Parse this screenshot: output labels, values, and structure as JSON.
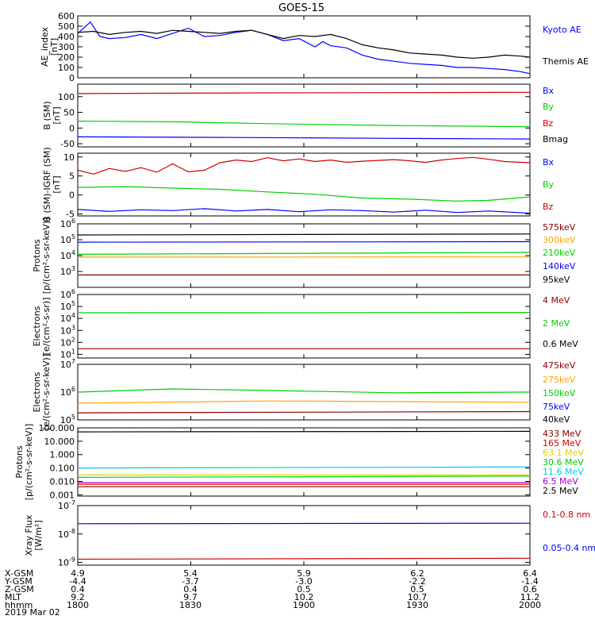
{
  "title": "GOES-15",
  "date_label": "2019 Mar 02",
  "footer_rows": [
    {
      "label": "X-GSM",
      "values": [
        "4.9",
        "5.4",
        "5.9",
        "6.2",
        "6.4"
      ]
    },
    {
      "label": "Y-GSM",
      "values": [
        "-4.4",
        "-3.7",
        "-3.0",
        "-2.2",
        "-1.4"
      ]
    },
    {
      "label": "Z-GSM",
      "values": [
        "0.4",
        "0.4",
        "0.5",
        "0.5",
        "0.6"
      ]
    },
    {
      "label": "MLT",
      "values": [
        "9.2",
        "9.7",
        "10.2",
        "10.7",
        "11.2"
      ]
    },
    {
      "label": "hhmm",
      "values": [
        "1800",
        "1830",
        "1900",
        "1930",
        "2000"
      ]
    }
  ],
  "colors": {
    "black": "#000000",
    "blue": "#0000ff",
    "green": "#00d000",
    "red": "#d00000",
    "darkred": "#8b0000",
    "orange": "#ffa500",
    "yellow": "#e8d000",
    "cyan": "#00c8e6",
    "purple": "#a000c8"
  },
  "chart_data": [
    {
      "type": "line",
      "id": "ae",
      "ylabel": [
        "AE_index",
        "[nT]"
      ],
      "yticks": [
        "600",
        "500",
        "400",
        "300",
        "200",
        "100",
        "0"
      ],
      "x_range": [
        "1800",
        "2000"
      ],
      "ylim": [
        0,
        600
      ],
      "series": [
        {
          "name": "Kyoto AE",
          "color": "#0000ff",
          "points": [
            [
              0,
              430
            ],
            [
              8,
              540
            ],
            [
              14,
              400
            ],
            [
              20,
              380
            ],
            [
              30,
              390
            ],
            [
              40,
              420
            ],
            [
              50,
              380
            ],
            [
              60,
              430
            ],
            [
              70,
              480
            ],
            [
              80,
              400
            ],
            [
              90,
              410
            ],
            [
              100,
              440
            ],
            [
              110,
              460
            ],
            [
              120,
              420
            ],
            [
              130,
              360
            ],
            [
              140,
              380
            ],
            [
              150,
              300
            ],
            [
              155,
              350
            ],
            [
              160,
              310
            ],
            [
              170,
              290
            ],
            [
              180,
              220
            ],
            [
              190,
              180
            ],
            [
              200,
              160
            ],
            [
              210,
              140
            ],
            [
              220,
              130
            ],
            [
              230,
              120
            ],
            [
              240,
              100
            ],
            [
              250,
              100
            ],
            [
              260,
              90
            ],
            [
              270,
              80
            ],
            [
              280,
              60
            ],
            [
              286,
              40
            ]
          ]
        },
        {
          "name": "Themis AE",
          "color": "#000000",
          "points": [
            [
              0,
              440
            ],
            [
              10,
              450
            ],
            [
              20,
              420
            ],
            [
              30,
              440
            ],
            [
              40,
              450
            ],
            [
              50,
              430
            ],
            [
              60,
              460
            ],
            [
              70,
              450
            ],
            [
              80,
              440
            ],
            [
              90,
              430
            ],
            [
              100,
              450
            ],
            [
              110,
              460
            ],
            [
              120,
              420
            ],
            [
              130,
              380
            ],
            [
              140,
              410
            ],
            [
              150,
              400
            ],
            [
              160,
              420
            ],
            [
              170,
              380
            ],
            [
              180,
              320
            ],
            [
              190,
              290
            ],
            [
              200,
              270
            ],
            [
              210,
              240
            ],
            [
              220,
              230
            ],
            [
              230,
              220
            ],
            [
              240,
              200
            ],
            [
              250,
              190
            ],
            [
              260,
              200
            ],
            [
              270,
              220
            ],
            [
              280,
              210
            ],
            [
              286,
              200
            ]
          ]
        }
      ]
    },
    {
      "type": "line",
      "id": "b_sm",
      "ylabel": [
        "B (SM)",
        "[nT]"
      ],
      "yticks": [
        "100",
        "50",
        "0",
        "-50"
      ],
      "ylim": [
        -60,
        140
      ],
      "series": [
        {
          "name": "Bx",
          "color": "#0000ff",
          "points": [
            [
              0,
              -28
            ],
            [
              100,
              -30
            ],
            [
              200,
              -33
            ],
            [
              286,
              -35
            ]
          ]
        },
        {
          "name": "By",
          "color": "#00d000",
          "points": [
            [
              0,
              22
            ],
            [
              60,
              20
            ],
            [
              120,
              14
            ],
            [
              200,
              8
            ],
            [
              286,
              4
            ]
          ]
        },
        {
          "name": "Bz",
          "color": "#d00000",
          "points": [
            [
              0,
              110
            ],
            [
              100,
              112
            ],
            [
              200,
              113
            ],
            [
              286,
              114
            ]
          ]
        },
        {
          "name": "Bmag",
          "color": "#000000",
          "points": []
        }
      ]
    },
    {
      "type": "line",
      "id": "b_sm_igrf",
      "ylabel": [
        "B (SM)-IGRF (SM)",
        "[nT]"
      ],
      "yticks": [
        "10",
        "5",
        "0",
        "-5"
      ],
      "ylim": [
        -5.5,
        11
      ],
      "series": [
        {
          "name": "Bx",
          "color": "#0000ff",
          "points": [
            [
              0,
              -3.8
            ],
            [
              20,
              -4.3
            ],
            [
              40,
              -3.9
            ],
            [
              60,
              -4.1
            ],
            [
              80,
              -3.6
            ],
            [
              100,
              -4.2
            ],
            [
              120,
              -3.8
            ],
            [
              140,
              -4.4
            ],
            [
              160,
              -3.9
            ],
            [
              180,
              -4.1
            ],
            [
              200,
              -4.5
            ],
            [
              220,
              -4.0
            ],
            [
              240,
              -4.6
            ],
            [
              260,
              -4.2
            ],
            [
              286,
              -4.8
            ]
          ]
        },
        {
          "name": "By",
          "color": "#00d000",
          "points": [
            [
              0,
              2.0
            ],
            [
              30,
              2.2
            ],
            [
              60,
              1.8
            ],
            [
              90,
              1.5
            ],
            [
              120,
              0.8
            ],
            [
              150,
              0.2
            ],
            [
              180,
              -0.8
            ],
            [
              210,
              -1.1
            ],
            [
              240,
              -1.6
            ],
            [
              260,
              -1.4
            ],
            [
              286,
              -0.5
            ]
          ]
        },
        {
          "name": "Bz",
          "color": "#d00000",
          "points": [
            [
              0,
              6.5
            ],
            [
              10,
              5.5
            ],
            [
              20,
              7.0
            ],
            [
              30,
              6.2
            ],
            [
              40,
              7.2
            ],
            [
              50,
              6.0
            ],
            [
              60,
              8.2
            ],
            [
              70,
              6.1
            ],
            [
              80,
              6.5
            ],
            [
              90,
              8.5
            ],
            [
              100,
              9.2
            ],
            [
              110,
              8.8
            ],
            [
              120,
              9.8
            ],
            [
              130,
              9.0
            ],
            [
              140,
              9.5
            ],
            [
              150,
              8.8
            ],
            [
              160,
              9.2
            ],
            [
              170,
              8.6
            ],
            [
              180,
              8.9
            ],
            [
              190,
              9.1
            ],
            [
              200,
              9.3
            ],
            [
              210,
              9.0
            ],
            [
              220,
              8.6
            ],
            [
              230,
              9.2
            ],
            [
              240,
              9.6
            ],
            [
              250,
              9.9
            ],
            [
              260,
              9.4
            ],
            [
              270,
              8.8
            ],
            [
              286,
              8.5
            ]
          ]
        }
      ]
    },
    {
      "type": "line",
      "id": "protons_low",
      "log": true,
      "ylabel": [
        "Protons",
        "[p/(cm²-s-sr-keV)]"
      ],
      "yticks_exp": [
        3,
        4,
        5,
        6
      ],
      "ylim": [
        100,
        1000000
      ],
      "series": [
        {
          "name": "575keV",
          "color": "#8b0000",
          "points": [
            [
              0,
              600
            ],
            [
              286,
              600
            ]
          ]
        },
        {
          "name": "300keV",
          "color": "#ffa500",
          "points": [
            [
              0,
              8000
            ],
            [
              286,
              8200
            ]
          ]
        },
        {
          "name": "210keV",
          "color": "#00d000",
          "points": [
            [
              0,
              12000
            ],
            [
              286,
              16000
            ]
          ]
        },
        {
          "name": "140keV",
          "color": "#0000ff",
          "points": [
            [
              0,
              70000
            ],
            [
              286,
              75000
            ]
          ]
        },
        {
          "name": "95keV",
          "color": "#000000",
          "points": [
            [
              0,
              200000
            ],
            [
              286,
              230000
            ]
          ]
        }
      ]
    },
    {
      "type": "line",
      "id": "electrons_mev",
      "log": true,
      "ylabel": [
        "Electrons",
        "[e/(cm²-s-sr)]"
      ],
      "yticks_exp": [
        1,
        2,
        3,
        4,
        5,
        6
      ],
      "ylim": [
        5,
        1000000
      ],
      "series": [
        {
          "name": "4 MeV",
          "color": "#8b0000",
          "points": [
            [
              0,
              30
            ],
            [
              286,
              30
            ]
          ]
        },
        {
          "name": "2 MeV",
          "color": "#00d000",
          "points": [
            [
              0,
              30000
            ],
            [
              286,
              32000
            ]
          ]
        },
        {
          "name": "0.6 MeV",
          "color": "#000000",
          "points": []
        }
      ]
    },
    {
      "type": "line",
      "id": "electrons_kev",
      "log": true,
      "ylabel": [
        "Electrons",
        "[e/(cm²-s-sr-keV)]"
      ],
      "yticks_exp": [
        5,
        6,
        7
      ],
      "ylim": [
        100000,
        10000000
      ],
      "series": [
        {
          "name": "475keV",
          "color": "#8b0000",
          "points": [
            [
              0,
              180000
            ],
            [
              286,
              200000
            ]
          ]
        },
        {
          "name": "275keV",
          "color": "#ffa500",
          "points": [
            [
              0,
              400000
            ],
            [
              120,
              480000
            ],
            [
              286,
              430000
            ]
          ]
        },
        {
          "name": "150keV",
          "color": "#00d000",
          "points": [
            [
              0,
              1000000
            ],
            [
              60,
              1300000
            ],
            [
              120,
              1150000
            ],
            [
              200,
              950000
            ],
            [
              286,
              1000000
            ]
          ]
        },
        {
          "name": "75keV",
          "color": "#0000ff",
          "points": []
        },
        {
          "name": "40keV",
          "color": "#000000",
          "points": []
        }
      ]
    },
    {
      "type": "line",
      "id": "protons_mev",
      "log": true,
      "ylabel": [
        "Protons",
        "[p/(cm²-s-sr-keV)]"
      ],
      "yticks": [
        "100.000",
        "10.000",
        "1.000",
        "0.100",
        "0.010",
        "0.001"
      ],
      "ylim": [
        0.0008,
        100
      ],
      "series": [
        {
          "name": "433 MeV",
          "color": "#8b0000",
          "points": [
            [
              0,
              0.004
            ],
            [
              286,
              0.004
            ]
          ]
        },
        {
          "name": "165 MeV",
          "color": "#d00000",
          "points": [
            [
              0,
              0.006
            ],
            [
              286,
              0.006
            ]
          ]
        },
        {
          "name": "63.1 MeV",
          "color": "#e8d000",
          "points": [
            [
              0,
              0.03
            ],
            [
              286,
              0.03
            ]
          ]
        },
        {
          "name": "30.6 MeV",
          "color": "#00d000",
          "points": [
            [
              0,
              0.02
            ],
            [
              286,
              0.025
            ]
          ]
        },
        {
          "name": "11.6 MeV",
          "color": "#00c8e6",
          "points": [
            [
              0,
              0.1
            ],
            [
              286,
              0.12
            ]
          ]
        },
        {
          "name": "6.5 MeV",
          "color": "#a000c8",
          "points": [
            [
              0,
              0.008
            ],
            [
              286,
              0.008
            ]
          ]
        },
        {
          "name": "2.5 MeV",
          "color": "#000000",
          "points": [
            [
              0,
              50
            ],
            [
              286,
              55
            ]
          ]
        }
      ]
    },
    {
      "type": "line",
      "id": "xray",
      "log": true,
      "ylabel": [
        "Xray Flux",
        "[W/m²]"
      ],
      "yticks_exp": [
        -9,
        -8,
        -7
      ],
      "ylim": [
        8e-10,
        1e-07
      ],
      "series": [
        {
          "name": "0.1-0.8 nm",
          "color": "#d00000",
          "points": [
            [
              0,
              1.3e-09
            ],
            [
              286,
              1.4e-09
            ]
          ]
        },
        {
          "name": "0.05-0.4 nm",
          "color": "#0000ff",
          "points": [
            [
              0,
              2.3e-08
            ],
            [
              286,
              2.4e-08
            ]
          ]
        }
      ]
    }
  ]
}
